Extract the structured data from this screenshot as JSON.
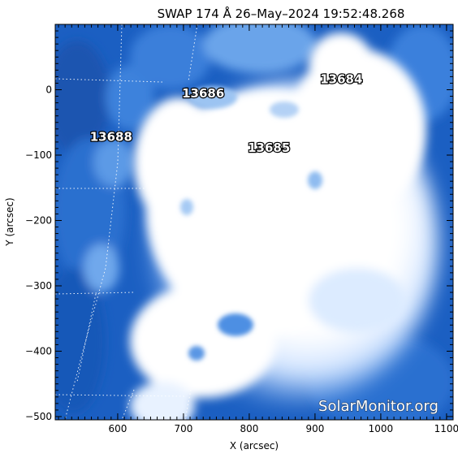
{
  "title": "SWAP 174 Å 26–May–2024 19:52:48.268",
  "xlabel": "X (arcsec)",
  "ylabel": "Y (arcsec)",
  "watermark": "SolarMonitor.org",
  "axes": {
    "x_range": [
      505,
      1110
    ],
    "y_range": [
      -505,
      100
    ],
    "x_ticks": [
      600,
      700,
      800,
      900,
      1000,
      1100
    ],
    "y_ticks": [
      0,
      -100,
      -200,
      -300,
      -400,
      -500
    ]
  },
  "regions": [
    {
      "label": "13684",
      "x": 940,
      "y": 10
    },
    {
      "label": "13686",
      "x": 730,
      "y": -12
    },
    {
      "label": "13688",
      "x": 590,
      "y": -78
    },
    {
      "label": "13685",
      "x": 830,
      "y": -95
    }
  ],
  "colors": {
    "background_disk": "#1e63c4",
    "bright_region": "#ffffff",
    "frame": "#000000"
  }
}
